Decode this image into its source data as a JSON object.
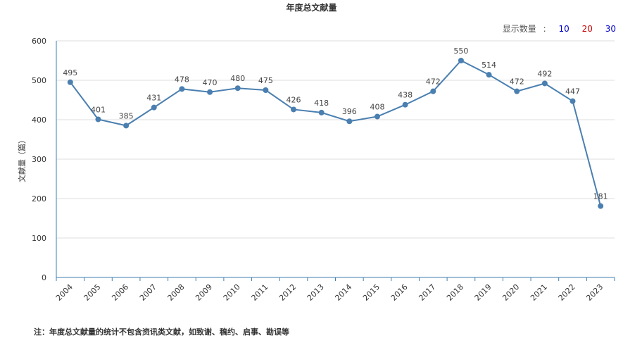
{
  "page": {
    "title": "年度总文献量",
    "display_count": {
      "label": "显示数量",
      "separator": ":",
      "options": [
        {
          "label": "10",
          "color": "#0000cc"
        },
        {
          "label": "20",
          "color": "#cc0000"
        },
        {
          "label": "30",
          "color": "#0000cc"
        }
      ]
    },
    "note": "注：年度总文献量的统计不包含资讯类文献，如致谢、稿约、启事、勘误等"
  },
  "chart_data": {
    "type": "line",
    "title": "年度总文献量",
    "xlabel": "",
    "ylabel": "文献量（篇）",
    "ylim": [
      0,
      600
    ],
    "yticks": [
      0,
      100,
      200,
      300,
      400,
      500,
      600
    ],
    "grid": true,
    "line_color": "#4a7fb0",
    "categories": [
      "2004",
      "2005",
      "2006",
      "2007",
      "2008",
      "2009",
      "2010",
      "2011",
      "2012",
      "2013",
      "2014",
      "2015",
      "2016",
      "2017",
      "2018",
      "2019",
      "2020",
      "2021",
      "2022",
      "2023"
    ],
    "values": [
      495,
      401,
      385,
      431,
      478,
      470,
      480,
      475,
      426,
      418,
      396,
      408,
      438,
      472,
      550,
      514,
      472,
      492,
      447,
      181
    ]
  }
}
